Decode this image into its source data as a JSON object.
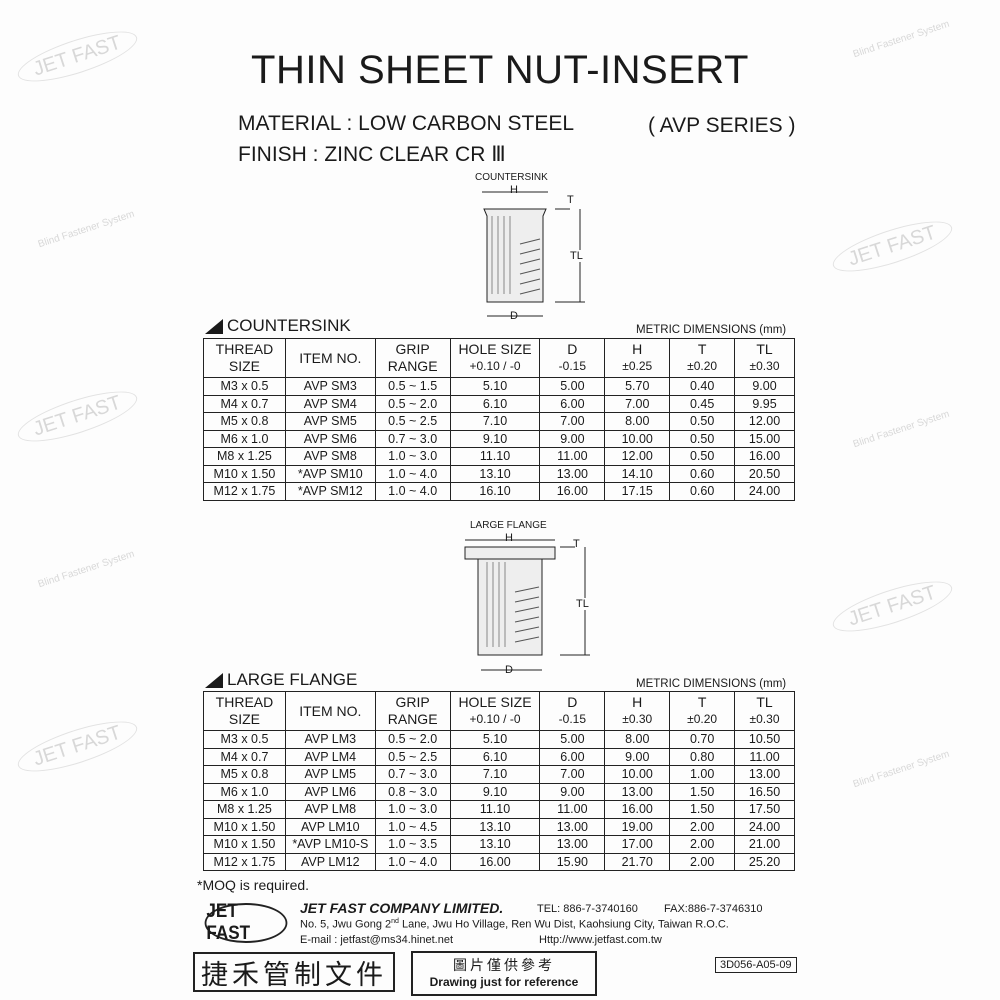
{
  "watermark": {
    "brand": "JET FAST",
    "tagline": "Blind Fastener System"
  },
  "title": "THIN SHEET NUT-INSERT",
  "material": "MATERIAL : LOW CARBON STEEL",
  "series": "( AVP SERIES )",
  "finish": "FINISH : ZINC CLEAR CR Ⅲ",
  "countersink_diagram": {
    "label": "COUNTERSINK",
    "dims": [
      "H",
      "T",
      "TL",
      "D"
    ]
  },
  "flange_diagram": {
    "label": "LARGE FLANGE",
    "dims": [
      "H",
      "T",
      "TL",
      "D"
    ]
  },
  "countersink": {
    "title": "COUNTERSINK",
    "units": "METRIC DIMENSIONS (mm)",
    "headers": [
      [
        "THREAD",
        "SIZE"
      ],
      [
        "ITEM NO.",
        ""
      ],
      [
        "GRIP",
        "RANGE"
      ],
      [
        "HOLE SIZE",
        "+0.10 / -0"
      ],
      [
        "D",
        "-0.15"
      ],
      [
        "H",
        "±0.25"
      ],
      [
        "T",
        "±0.20"
      ],
      [
        "TL",
        "±0.30"
      ]
    ],
    "rows": [
      [
        "M3 x 0.5",
        "AVP SM3",
        "0.5 ~ 1.5",
        "5.10",
        "5.00",
        "5.70",
        "0.40",
        "9.00"
      ],
      [
        "M4 x 0.7",
        "AVP SM4",
        "0.5 ~ 2.0",
        "6.10",
        "6.00",
        "7.00",
        "0.45",
        "9.95"
      ],
      [
        "M5 x 0.8",
        "AVP SM5",
        "0.5 ~ 2.5",
        "7.10",
        "7.00",
        "8.00",
        "0.50",
        "12.00"
      ],
      [
        "M6 x 1.0",
        "AVP SM6",
        "0.7 ~ 3.0",
        "9.10",
        "9.00",
        "10.00",
        "0.50",
        "15.00"
      ],
      [
        "M8 x 1.25",
        "AVP SM8",
        "1.0 ~ 3.0",
        "11.10",
        "11.00",
        "12.00",
        "0.50",
        "16.00"
      ],
      [
        "M10 x 1.50",
        "*AVP SM10",
        "1.0 ~ 4.0",
        "13.10",
        "13.00",
        "14.10",
        "0.60",
        "20.50"
      ],
      [
        "M12 x 1.75",
        "*AVP SM12",
        "1.0 ~ 4.0",
        "16.10",
        "16.00",
        "17.15",
        "0.60",
        "24.00"
      ]
    ]
  },
  "large_flange": {
    "title": "LARGE FLANGE",
    "units": "METRIC DIMENSIONS (mm)",
    "headers": [
      [
        "THREAD",
        "SIZE"
      ],
      [
        "ITEM NO.",
        ""
      ],
      [
        "GRIP",
        "RANGE"
      ],
      [
        "HOLE SIZE",
        "+0.10 / -0"
      ],
      [
        "D",
        "-0.15"
      ],
      [
        "H",
        "±0.30"
      ],
      [
        "T",
        "±0.20"
      ],
      [
        "TL",
        "±0.30"
      ]
    ],
    "rows": [
      [
        "M3 x 0.5",
        "AVP LM3",
        "0.5 ~ 2.0",
        "5.10",
        "5.00",
        "8.00",
        "0.70",
        "10.50"
      ],
      [
        "M4 x 0.7",
        "AVP LM4",
        "0.5 ~ 2.5",
        "6.10",
        "6.00",
        "9.00",
        "0.80",
        "11.00"
      ],
      [
        "M5 x 0.8",
        "AVP LM5",
        "0.7 ~ 3.0",
        "7.10",
        "7.00",
        "10.00",
        "1.00",
        "13.00"
      ],
      [
        "M6 x 1.0",
        "AVP LM6",
        "0.8 ~ 3.0",
        "9.10",
        "9.00",
        "13.00",
        "1.50",
        "16.50"
      ],
      [
        "M8 x 1.25",
        "AVP LM8",
        "1.0 ~ 3.0",
        "11.10",
        "11.00",
        "16.00",
        "1.50",
        "17.50"
      ],
      [
        "M10 x 1.50",
        "AVP LM10",
        "1.0 ~ 4.5",
        "13.10",
        "13.00",
        "19.00",
        "2.00",
        "24.00"
      ],
      [
        "M10 x 1.50",
        "*AVP LM10-S",
        "1.0 ~ 3.5",
        "13.10",
        "13.00",
        "17.00",
        "2.00",
        "21.00"
      ],
      [
        "M12 x 1.75",
        "AVP LM12",
        "1.0 ~ 4.0",
        "16.00",
        "15.90",
        "21.70",
        "2.00",
        "25.20"
      ]
    ]
  },
  "note": "*MOQ is required.",
  "footer": {
    "logo": "JET FAST",
    "company": "JET FAST COMPANY LIMITED.",
    "tel": "TEL: 886-7-3740160",
    "fax": "FAX:886-7-3746310",
    "address": "No. 5, Jwu Gong 2nd Lane, Jwu Ho Village, Ren Wu Dist, Kaohsiung City, Taiwan R.O.C.",
    "email": "E-mail : jetfast@ms34.hinet.net",
    "web": "Http://www.jetfast.com.tw",
    "stamp_controlled": "捷禾管制文件",
    "stamp_ref_cn": "圖片僅供參考",
    "stamp_ref_en": "Drawing just for reference",
    "doc_code": "3D056-A05-09"
  }
}
